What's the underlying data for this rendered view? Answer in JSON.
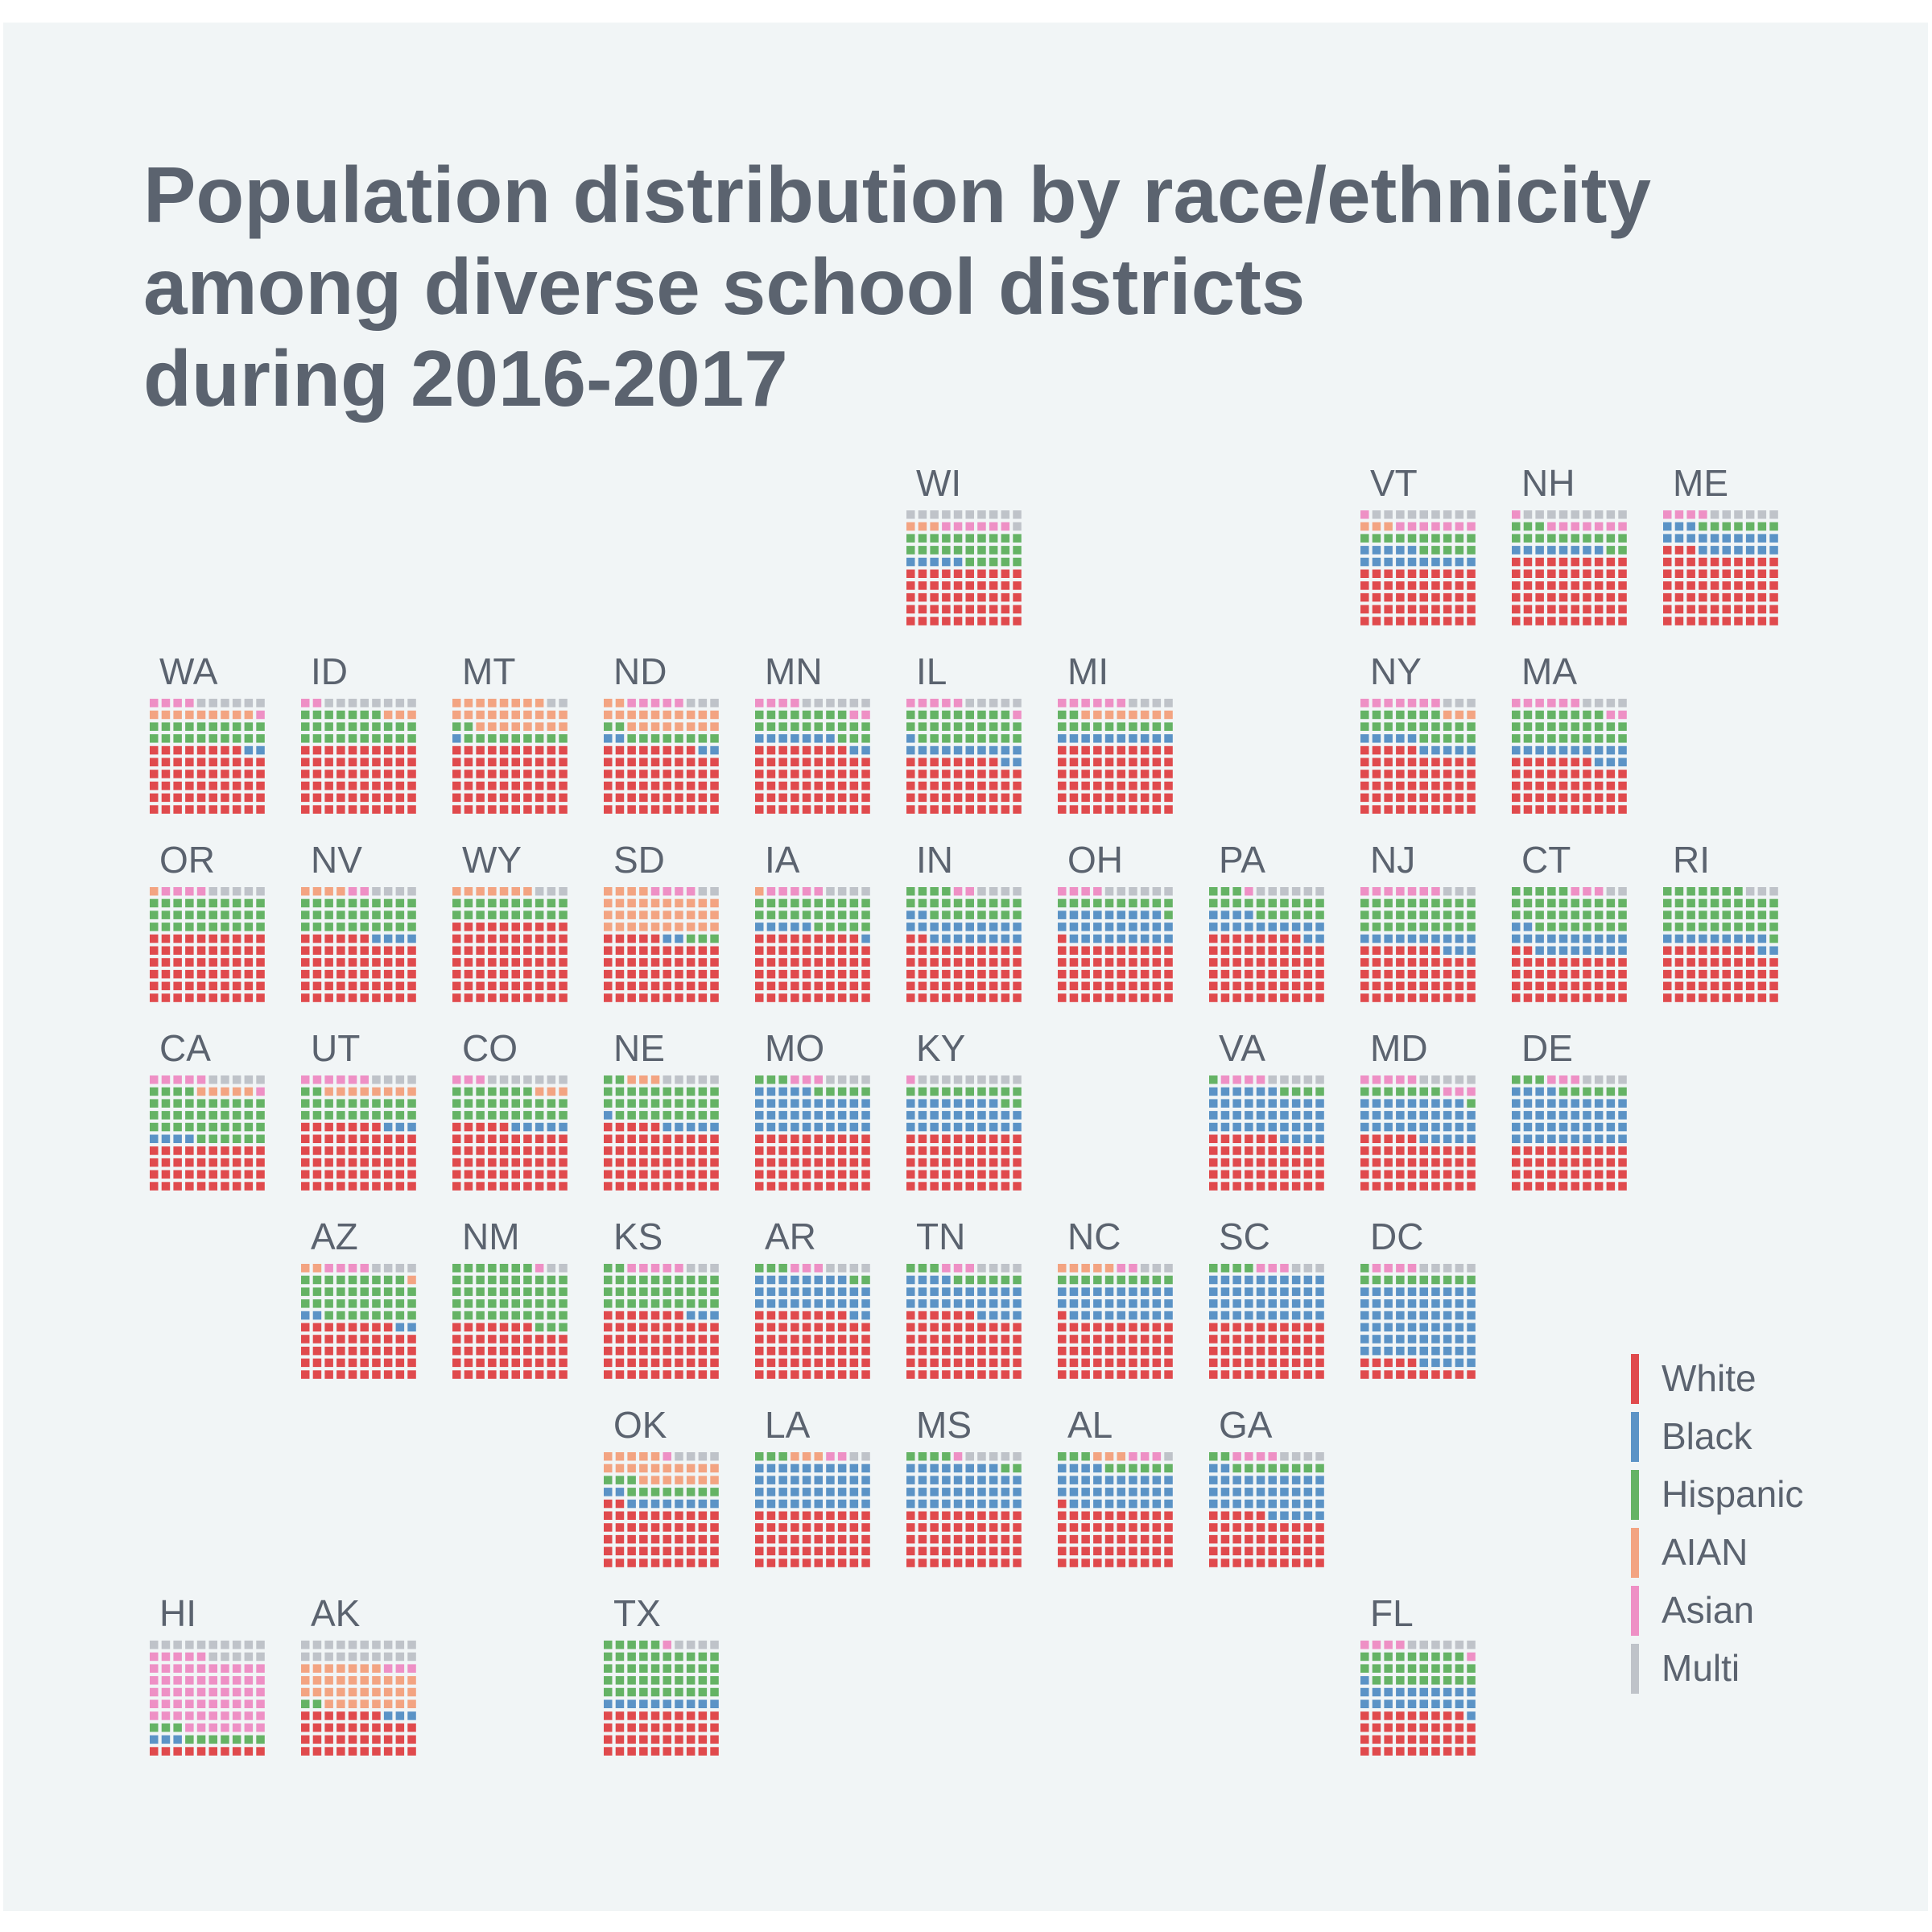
{
  "chart_data": {
    "type": "waffle",
    "title_lines": [
      "Population distribution by race/ethnicity",
      "among diverse school districts",
      "during 2016-2017"
    ],
    "unit": "percent of population (10x10 waffle per state, 1 square = 1%)",
    "categories": [
      "White",
      "Black",
      "Hispanic",
      "AIAN",
      "Asian",
      "Multi"
    ],
    "colors": {
      "White": "#e04a4d",
      "Black": "#5b93c6",
      "Hispanic": "#65b365",
      "AIAN": "#f3a482",
      "Asian": "#ee90c5",
      "Multi": "#bfc3c9"
    },
    "legend": {
      "position": "bottom-right",
      "items": [
        "White",
        "Black",
        "Hispanic",
        "AIAN",
        "Asian",
        "Multi"
      ]
    },
    "states": [
      {
        "abbr": "WI",
        "row": 0,
        "col": 5,
        "values": [
          50,
          5,
          25,
          3,
          6,
          11
        ]
      },
      {
        "abbr": "VT",
        "row": 0,
        "col": 8,
        "values": [
          50,
          15,
          15,
          3,
          8,
          9
        ]
      },
      {
        "abbr": "NH",
        "row": 0,
        "col": 9,
        "values": [
          60,
          8,
          15,
          0,
          8,
          9
        ]
      },
      {
        "abbr": "ME",
        "row": 0,
        "col": 10,
        "values": [
          63,
          20,
          7,
          0,
          4,
          6
        ]
      },
      {
        "abbr": "WA",
        "row": 1,
        "col": 0,
        "values": [
          58,
          2,
          20,
          9,
          5,
          6
        ]
      },
      {
        "abbr": "ID",
        "row": 1,
        "col": 1,
        "values": [
          60,
          0,
          27,
          3,
          2,
          8
        ]
      },
      {
        "abbr": "MT",
        "row": 1,
        "col": 2,
        "values": [
          60,
          1,
          11,
          26,
          0,
          2
        ]
      },
      {
        "abbr": "ND",
        "row": 1,
        "col": 3,
        "values": [
          58,
          4,
          10,
          20,
          5,
          3
        ]
      },
      {
        "abbr": "MN",
        "row": 1,
        "col": 4,
        "values": [
          58,
          9,
          21,
          0,
          6,
          6
        ]
      },
      {
        "abbr": "IL",
        "row": 1,
        "col": 5,
        "values": [
          48,
          13,
          28,
          0,
          6,
          5
        ]
      },
      {
        "abbr": "MI",
        "row": 1,
        "col": 6,
        "values": [
          60,
          10,
          12,
          8,
          6,
          4
        ]
      },
      {
        "abbr": "NY",
        "row": 1,
        "col": 8,
        "values": [
          55,
          10,
          22,
          3,
          7,
          3
        ]
      },
      {
        "abbr": "MA",
        "row": 1,
        "col": 9,
        "values": [
          47,
          13,
          28,
          0,
          8,
          4
        ]
      },
      {
        "abbr": "OR",
        "row": 2,
        "col": 0,
        "values": [
          60,
          0,
          30,
          1,
          4,
          5
        ]
      },
      {
        "abbr": "NV",
        "row": 2,
        "col": 1,
        "values": [
          56,
          4,
          30,
          4,
          2,
          4
        ]
      },
      {
        "abbr": "WY",
        "row": 2,
        "col": 2,
        "values": [
          70,
          0,
          20,
          7,
          0,
          3
        ]
      },
      {
        "abbr": "SD",
        "row": 2,
        "col": 3,
        "values": [
          55,
          2,
          3,
          34,
          4,
          2
        ]
      },
      {
        "abbr": "IA",
        "row": 2,
        "col": 4,
        "values": [
          59,
          6,
          25,
          1,
          5,
          4
        ]
      },
      {
        "abbr": "IN",
        "row": 2,
        "col": 5,
        "values": [
          52,
          20,
          22,
          0,
          2,
          4
        ]
      },
      {
        "abbr": "OH",
        "row": 2,
        "col": 6,
        "values": [
          51,
          28,
          11,
          0,
          4,
          6
        ]
      },
      {
        "abbr": "PA",
        "row": 2,
        "col": 7,
        "values": [
          58,
          16,
          19,
          0,
          1,
          6
        ]
      },
      {
        "abbr": "NJ",
        "row": 2,
        "col": 8,
        "values": [
          47,
          13,
          30,
          0,
          7,
          3
        ]
      },
      {
        "abbr": "CT",
        "row": 2,
        "col": 9,
        "values": [
          42,
          20,
          33,
          0,
          3,
          2
        ]
      },
      {
        "abbr": "RI",
        "row": 2,
        "col": 10,
        "values": [
          48,
          11,
          38,
          0,
          0,
          3
        ]
      },
      {
        "abbr": "CA",
        "row": 3,
        "col": 0,
        "values": [
          40,
          4,
          40,
          5,
          6,
          5
        ]
      },
      {
        "abbr": "UT",
        "row": 3,
        "col": 1,
        "values": [
          57,
          3,
          22,
          8,
          6,
          4
        ]
      },
      {
        "abbr": "CO",
        "row": 3,
        "col": 2,
        "values": [
          55,
          5,
          27,
          3,
          3,
          7
        ]
      },
      {
        "abbr": "NE",
        "row": 3,
        "col": 3,
        "values": [
          55,
          6,
          31,
          3,
          0,
          5
        ]
      },
      {
        "abbr": "MO",
        "row": 3,
        "col": 4,
        "values": [
          50,
          35,
          8,
          0,
          3,
          4
        ]
      },
      {
        "abbr": "KY",
        "row": 3,
        "col": 5,
        "values": [
          50,
          28,
          12,
          0,
          1,
          9
        ]
      },
      {
        "abbr": "VA",
        "row": 3,
        "col": 7,
        "values": [
          46,
          40,
          5,
          0,
          4,
          5
        ]
      },
      {
        "abbr": "MD",
        "row": 3,
        "col": 8,
        "values": [
          45,
          34,
          8,
          0,
          8,
          5
        ]
      },
      {
        "abbr": "DE",
        "row": 3,
        "col": 9,
        "values": [
          40,
          44,
          9,
          0,
          3,
          4
        ]
      },
      {
        "abbr": "AZ",
        "row": 4,
        "col": 1,
        "values": [
          48,
          4,
          37,
          3,
          4,
          4
        ]
      },
      {
        "abbr": "NM",
        "row": 4,
        "col": 2,
        "values": [
          47,
          0,
          50,
          0,
          1,
          2
        ]
      },
      {
        "abbr": "KS",
        "row": 4,
        "col": 3,
        "values": [
          57,
          3,
          32,
          0,
          5,
          3
        ]
      },
      {
        "abbr": "AR",
        "row": 4,
        "col": 4,
        "values": [
          58,
          30,
          5,
          0,
          3,
          4
        ]
      },
      {
        "abbr": "TN",
        "row": 4,
        "col": 5,
        "values": [
          56,
          28,
          9,
          0,
          3,
          4
        ]
      },
      {
        "abbr": "NC",
        "row": 4,
        "col": 6,
        "values": [
          51,
          29,
          10,
          5,
          2,
          3
        ]
      },
      {
        "abbr": "SC",
        "row": 4,
        "col": 7,
        "values": [
          50,
          40,
          4,
          0,
          3,
          3
        ]
      },
      {
        "abbr": "DC",
        "row": 4,
        "col": 8,
        "values": [
          15,
          65,
          11,
          0,
          4,
          5
        ]
      },
      {
        "abbr": "OK",
        "row": 5,
        "col": 3,
        "values": [
          52,
          10,
          11,
          22,
          1,
          4
        ]
      },
      {
        "abbr": "LA",
        "row": 5,
        "col": 4,
        "values": [
          50,
          40,
          3,
          3,
          2,
          2
        ]
      },
      {
        "abbr": "MS",
        "row": 5,
        "col": 5,
        "values": [
          50,
          38,
          6,
          0,
          1,
          5
        ]
      },
      {
        "abbr": "AL",
        "row": 5,
        "col": 6,
        "values": [
          51,
          33,
          9,
          3,
          3,
          1
        ]
      },
      {
        "abbr": "GA",
        "row": 5,
        "col": 7,
        "values": [
          45,
          37,
          10,
          0,
          4,
          4
        ]
      },
      {
        "abbr": "HI",
        "row": 6,
        "col": 0,
        "values": [
          10,
          3,
          10,
          0,
          62,
          15
        ]
      },
      {
        "abbr": "AK",
        "row": 6,
        "col": 1,
        "values": [
          37,
          3,
          2,
          35,
          3,
          20
        ]
      },
      {
        "abbr": "TX",
        "row": 6,
        "col": 3,
        "values": [
          40,
          10,
          45,
          0,
          1,
          4
        ]
      },
      {
        "abbr": "FL",
        "row": 6,
        "col": 8,
        "values": [
          39,
          22,
          28,
          0,
          5,
          6
        ]
      }
    ]
  }
}
